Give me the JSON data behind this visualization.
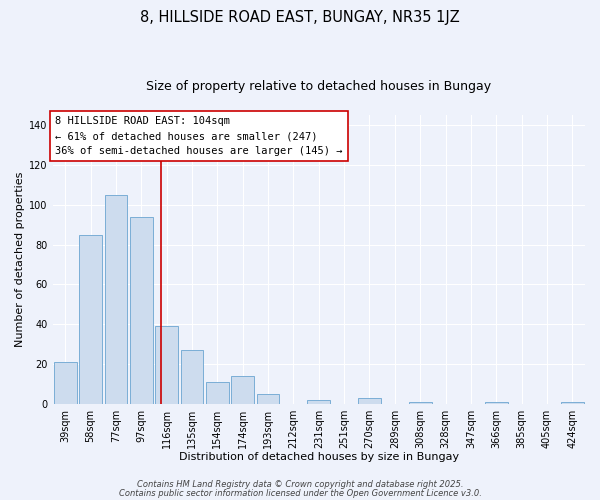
{
  "title": "8, HILLSIDE ROAD EAST, BUNGAY, NR35 1JZ",
  "subtitle": "Size of property relative to detached houses in Bungay",
  "xlabel": "Distribution of detached houses by size in Bungay",
  "ylabel": "Number of detached properties",
  "bar_labels": [
    "39sqm",
    "58sqm",
    "77sqm",
    "97sqm",
    "116sqm",
    "135sqm",
    "154sqm",
    "174sqm",
    "193sqm",
    "212sqm",
    "231sqm",
    "251sqm",
    "270sqm",
    "289sqm",
    "308sqm",
    "328sqm",
    "347sqm",
    "366sqm",
    "385sqm",
    "405sqm",
    "424sqm"
  ],
  "bar_values": [
    21,
    85,
    105,
    94,
    39,
    27,
    11,
    14,
    5,
    0,
    2,
    0,
    3,
    0,
    1,
    0,
    0,
    1,
    0,
    0,
    1
  ],
  "bar_color": "#cddcee",
  "bar_edge_color": "#7aaed6",
  "vline_x": 3.78,
  "vline_color": "#cc0000",
  "annotation_line1": "8 HILLSIDE ROAD EAST: 104sqm",
  "annotation_line2": "← 61% of detached houses are smaller (247)",
  "annotation_line3": "36% of semi-detached houses are larger (145) →",
  "ylim": [
    0,
    145
  ],
  "yticks": [
    0,
    20,
    40,
    60,
    80,
    100,
    120,
    140
  ],
  "footer1": "Contains HM Land Registry data © Crown copyright and database right 2025.",
  "footer2": "Contains public sector information licensed under the Open Government Licence v3.0.",
  "background_color": "#eef2fb",
  "grid_color": "#ffffff",
  "title_fontsize": 10.5,
  "subtitle_fontsize": 9,
  "axis_label_fontsize": 8,
  "tick_fontsize": 7,
  "annotation_fontsize": 7.5,
  "footer_fontsize": 6
}
